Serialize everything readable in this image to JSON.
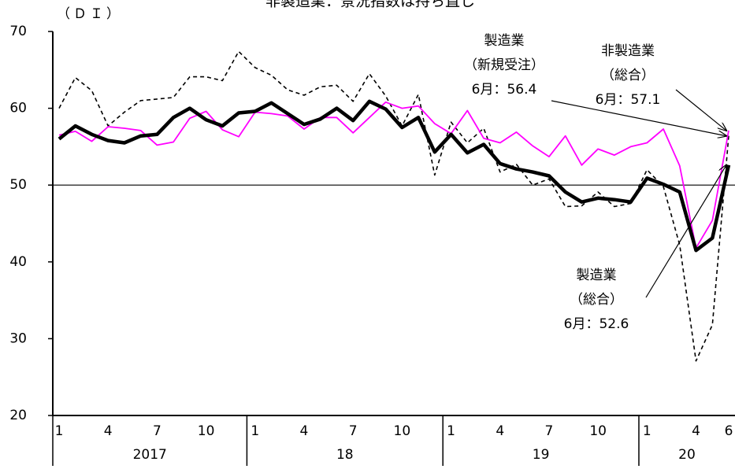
{
  "chart_data": {
    "type": "line",
    "title": "非製造業：景況指数は持ち直し",
    "y_label": "（ＤＩ）",
    "categories": [
      "1",
      null,
      null,
      "4",
      null,
      null,
      "7",
      null,
      null,
      "10",
      null,
      null,
      "1",
      null,
      null,
      "4",
      null,
      null,
      "7",
      null,
      null,
      "10",
      null,
      null,
      "1",
      null,
      null,
      "4",
      null,
      null,
      "7",
      null,
      null,
      "10",
      null,
      null,
      "1",
      null,
      null,
      "4",
      null,
      "6"
    ],
    "year_labels": [
      "2017",
      "18",
      "19",
      "20"
    ],
    "ylim": [
      20,
      70
    ],
    "yticks": [
      20,
      30,
      40,
      50,
      60,
      70
    ],
    "reference_line": 50,
    "series": [
      {
        "name": "製造業（新規受注）",
        "color": "#000000",
        "style": "dashed",
        "values": [
          60.0,
          64.0,
          62.3,
          57.7,
          59.5,
          61.0,
          61.2,
          61.4,
          64.1,
          64.1,
          63.6,
          67.4,
          65.3,
          64.3,
          62.4,
          61.7,
          62.8,
          63.0,
          60.9,
          64.5,
          61.6,
          57.7,
          61.8,
          51.3,
          58.2,
          55.5,
          57.4,
          51.7,
          52.7,
          50.0,
          50.8,
          47.2,
          47.3,
          49.1,
          47.2,
          47.6,
          52.0,
          49.8,
          42.2,
          27.1,
          31.8,
          56.4
        ]
      },
      {
        "name": "非製造業（総合）",
        "color": "#ff00ff",
        "style": "solid",
        "values": [
          56.5,
          57.0,
          55.7,
          57.6,
          57.4,
          57.1,
          55.2,
          55.6,
          58.7,
          59.6,
          57.2,
          56.3,
          59.5,
          59.3,
          59.0,
          57.3,
          58.8,
          58.8,
          56.8,
          58.8,
          60.8,
          60.0,
          60.3,
          58.0,
          56.7,
          59.7,
          56.1,
          55.5,
          56.9,
          55.1,
          53.7,
          56.4,
          52.6,
          54.7,
          53.9,
          55.0,
          55.5,
          57.3,
          52.5,
          41.8,
          45.4,
          57.1
        ]
      },
      {
        "name": "製造業（総合）",
        "color": "#000000",
        "style": "thick",
        "values": [
          56.0,
          57.7,
          56.6,
          55.8,
          55.5,
          56.4,
          56.6,
          58.8,
          60.0,
          58.5,
          57.7,
          59.4,
          59.6,
          60.7,
          59.3,
          57.9,
          58.6,
          60.0,
          58.4,
          60.9,
          59.9,
          57.5,
          58.8,
          54.3,
          56.6,
          54.2,
          55.3,
          52.8,
          52.1,
          51.7,
          51.2,
          49.1,
          47.8,
          48.3,
          48.1,
          47.8,
          50.9,
          50.1,
          49.1,
          41.5,
          43.1,
          52.6
        ]
      }
    ],
    "annotations": [
      {
        "lines": [
          "製造業",
          "（新規受注）",
          "6月：56.4"
        ]
      },
      {
        "lines": [
          "非製造業",
          "（総合）",
          "6月：57.1"
        ]
      },
      {
        "lines": [
          "製造業",
          "（総合）",
          "6月：52.6"
        ]
      }
    ]
  }
}
